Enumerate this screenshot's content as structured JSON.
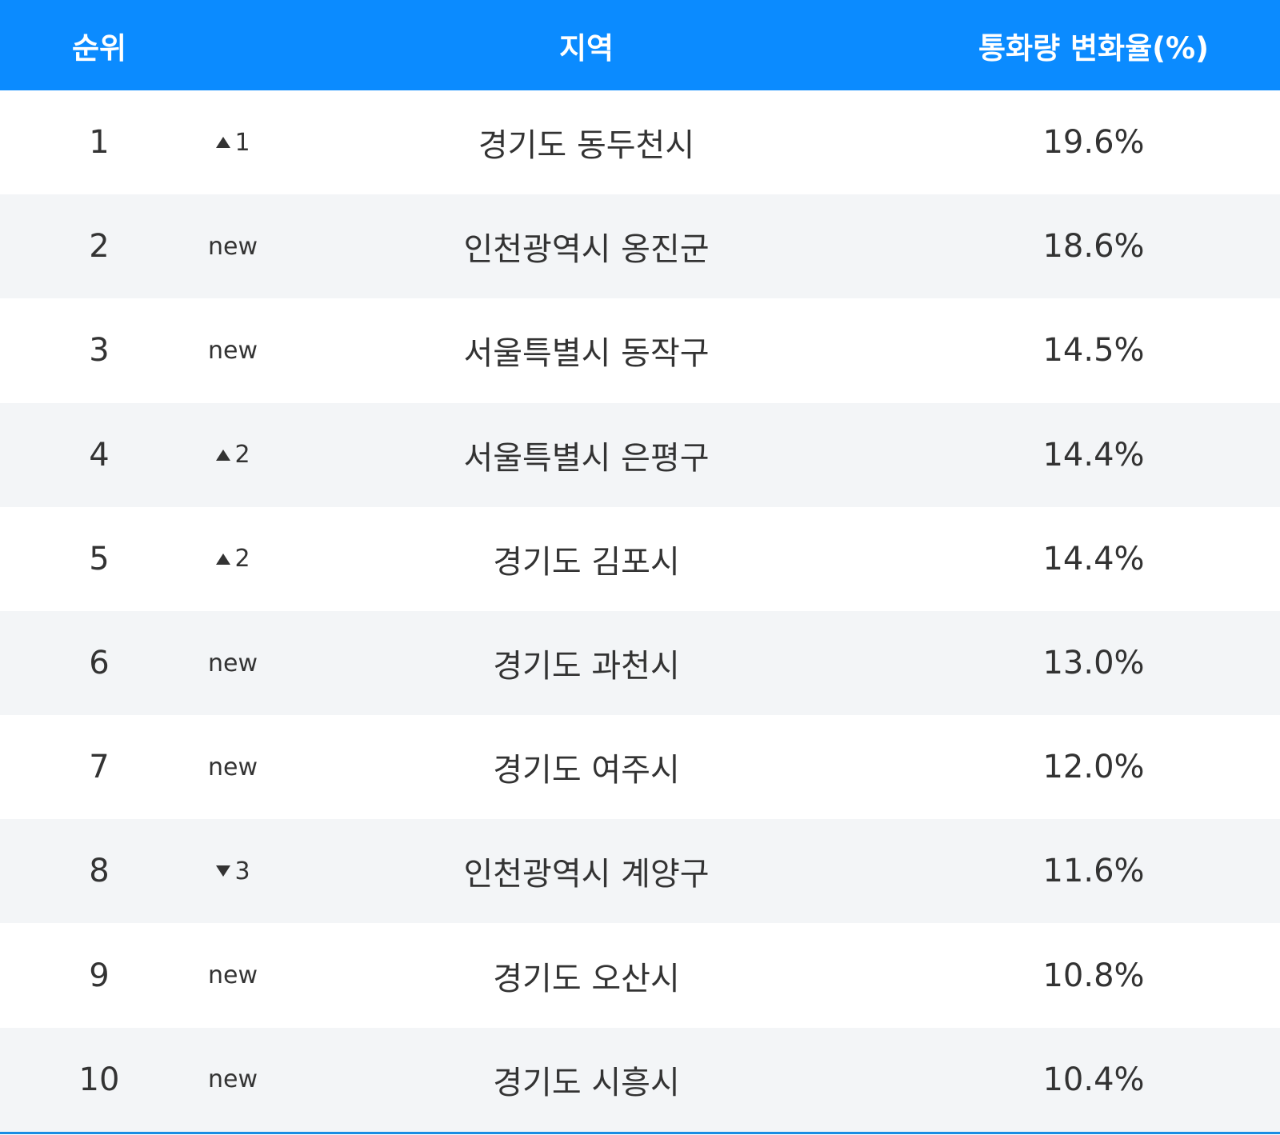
{
  "header": [
    "순위",
    "지역",
    "통화량 변화율(%)"
  ],
  "rows": [
    {
      "rank": 1,
      "change": {
        "trend": "up",
        "label": "1"
      },
      "region": "경기도 동두천시",
      "rate": "19.6%"
    },
    {
      "rank": 2,
      "change": {
        "label": "new"
      },
      "region": "인천광역시 옹진군",
      "rate": "18.6%"
    },
    {
      "rank": 3,
      "change": {
        "label": "new"
      },
      "region": "서울특별시 동작구",
      "rate": "14.5%"
    },
    {
      "rank": 4,
      "change": {
        "trend": "up",
        "label": "2"
      },
      "region": "서울특별시 은평구",
      "rate": "14.4%"
    },
    {
      "rank": 5,
      "change": {
        "trend": "up",
        "label": "2"
      },
      "region": "경기도 김포시",
      "rate": "14.4%"
    },
    {
      "rank": 6,
      "change": {
        "label": "new"
      },
      "region": "경기도 과천시",
      "rate": "13.0%"
    },
    {
      "rank": 7,
      "change": {
        "label": "new"
      },
      "region": "경기도 여주시",
      "rate": "12.0%"
    },
    {
      "rank": 8,
      "change": {
        "trend": "down",
        "label": "3"
      },
      "region": "인천광역시 계양구",
      "rate": "11.6%"
    },
    {
      "rank": 9,
      "change": {
        "label": "new"
      },
      "region": "경기도 오산시",
      "rate": "10.8%"
    },
    {
      "rank": 10,
      "change": {
        "label": "new"
      },
      "region": "경기도 시흥시",
      "rate": "10.4%"
    }
  ]
}
